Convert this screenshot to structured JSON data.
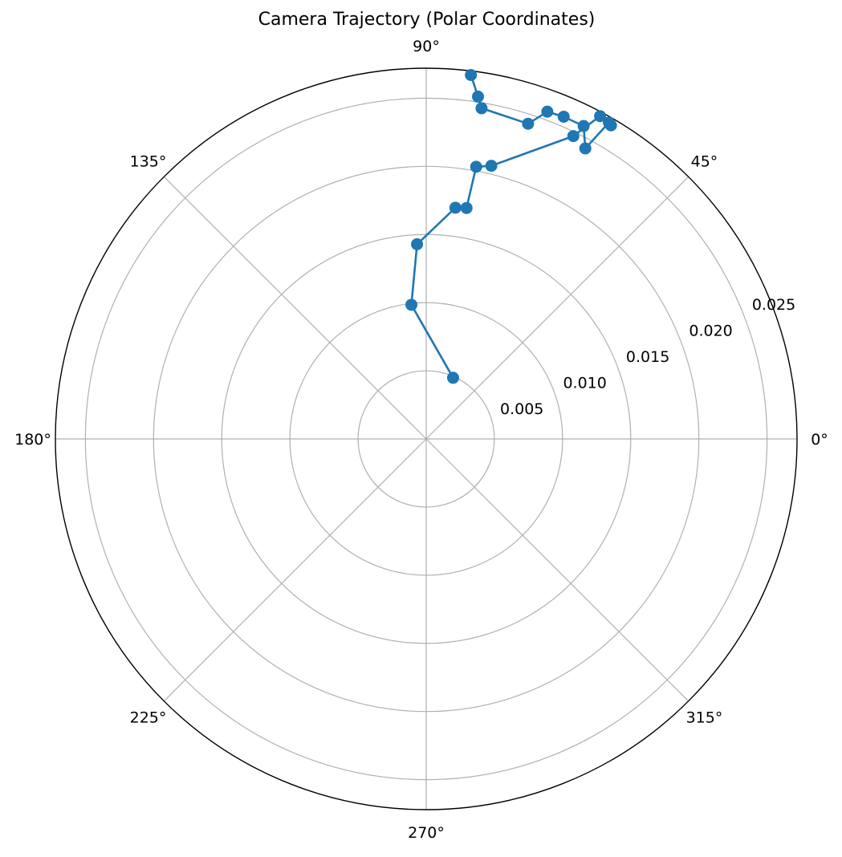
{
  "chart_data": {
    "type": "polar",
    "title": "Camera Trajectory (Polar Coordinates)",
    "theta_unit": "degrees",
    "r_lim": [
      0,
      0.0272
    ],
    "r_ticks": [
      0.005,
      0.01,
      0.015,
      0.02,
      0.025
    ],
    "r_tick_labels": [
      "0.005",
      "0.010",
      "0.015",
      "0.020",
      "0.025"
    ],
    "theta_ticks": [
      0,
      45,
      90,
      135,
      180,
      225,
      270,
      315
    ],
    "theta_tick_labels": [
      "0°",
      "45°",
      "90°",
      "135°",
      "180°",
      "225°",
      "270°",
      "315°"
    ],
    "grid": true,
    "series": [
      {
        "color": "#1f77b4",
        "marker": "circle",
        "points": [
          {
            "theta": 66.3,
            "r": 0.0049
          },
          {
            "theta": 96.3,
            "r": 0.0099
          },
          {
            "theta": 92.7,
            "r": 0.0143
          },
          {
            "theta": 82.8,
            "r": 0.0171
          },
          {
            "theta": 80.1,
            "r": 0.0172
          },
          {
            "theta": 79.6,
            "r": 0.0203
          },
          {
            "theta": 76.6,
            "r": 0.0206
          },
          {
            "theta": 64.1,
            "r": 0.0247
          },
          {
            "theta": 61.7,
            "r": 0.0269
          },
          {
            "theta": 59.5,
            "r": 0.0267
          },
          {
            "theta": 60.0,
            "r": 0.0268
          },
          {
            "theta": 61.3,
            "r": 0.0243
          },
          {
            "theta": 63.3,
            "r": 0.0257
          },
          {
            "theta": 66.9,
            "r": 0.0257
          },
          {
            "theta": 69.7,
            "r": 0.0256
          },
          {
            "theta": 72.1,
            "r": 0.0243
          },
          {
            "theta": 80.5,
            "r": 0.0246
          },
          {
            "theta": 81.4,
            "r": 0.0254
          },
          {
            "theta": 83.0,
            "r": 0.0269
          }
        ]
      }
    ]
  }
}
